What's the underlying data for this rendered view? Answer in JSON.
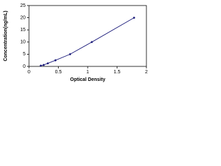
{
  "chart_data": {
    "type": "line",
    "xlabel": "Optical Density",
    "ylabel": "Concentration(ng/mL)",
    "x": [
      0.2,
      0.25,
      0.32,
      0.45,
      0.7,
      1.07,
      1.79
    ],
    "series": [
      {
        "color": "#1a1a7a",
        "values": [
          0.3,
          0.6,
          1.25,
          2.5,
          5,
          10,
          20
        ]
      }
    ],
    "xlim": [
      0,
      2
    ],
    "xticks": [
      0,
      0.5,
      1,
      1.5,
      2
    ],
    "ylim": [
      0,
      25
    ],
    "yticks": [
      0,
      5,
      10,
      15,
      20,
      25
    ]
  }
}
